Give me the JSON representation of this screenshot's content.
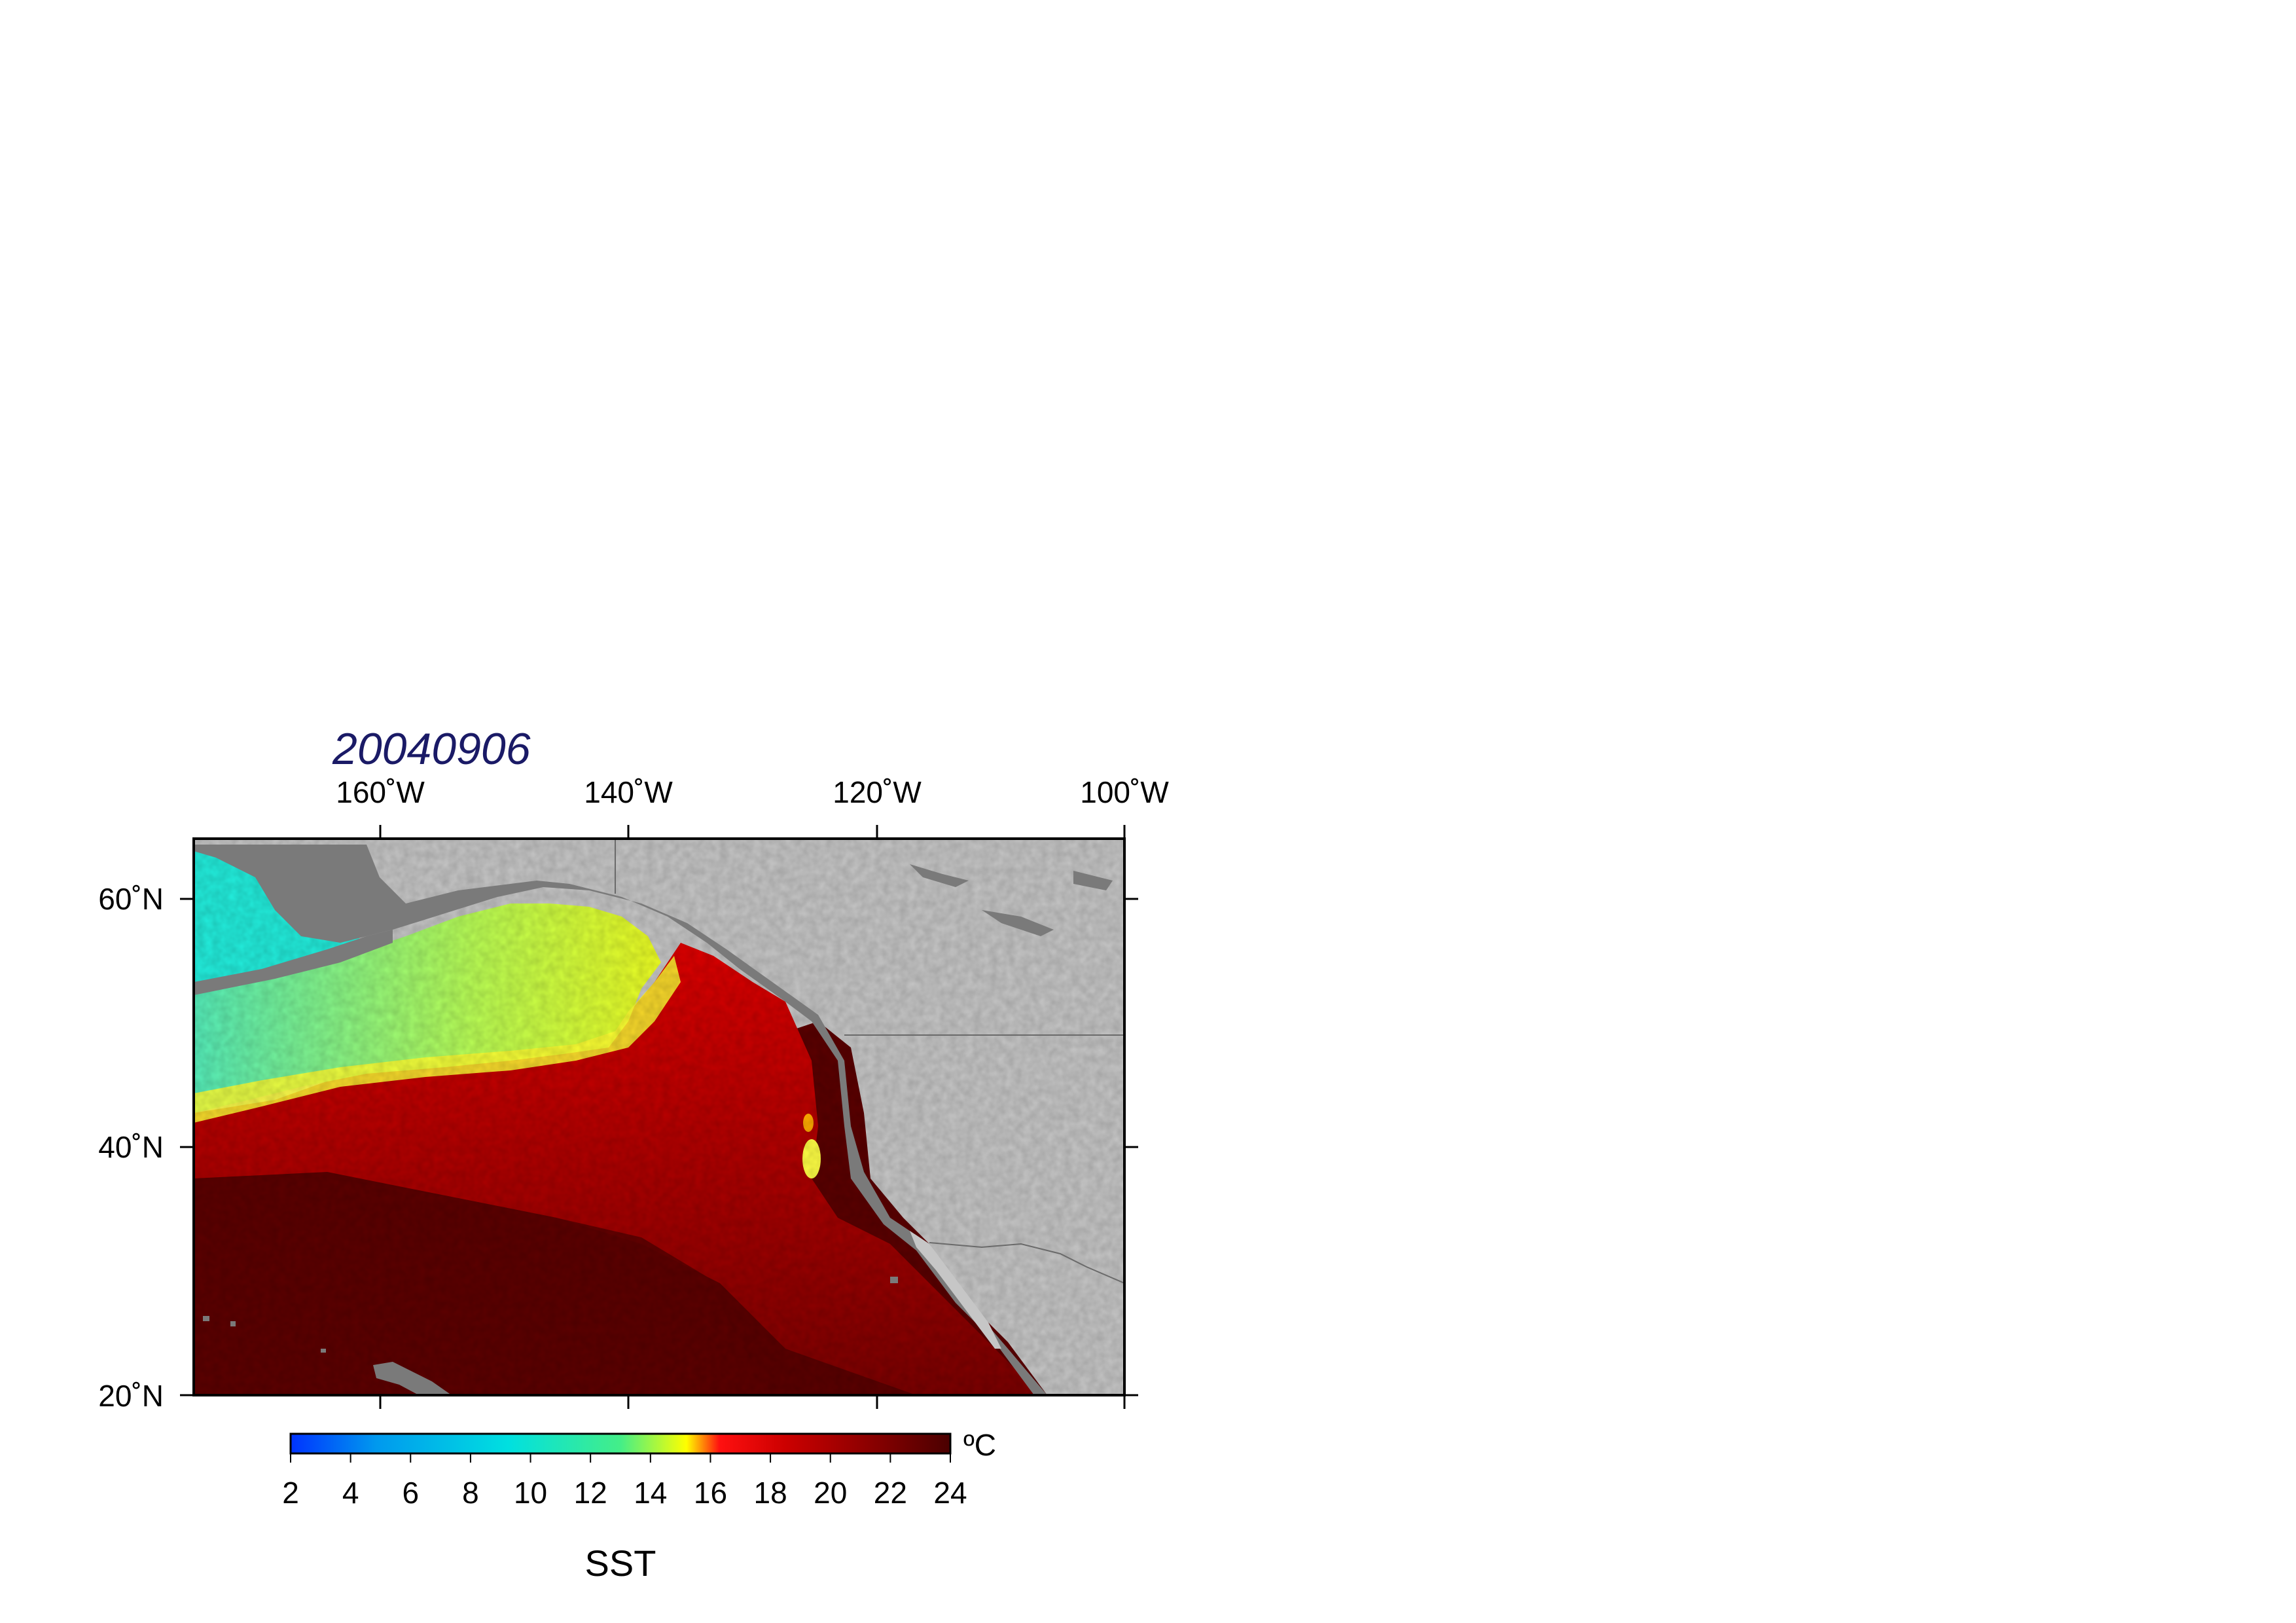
{
  "title": "20040906",
  "map": {
    "lon_labels": [
      "160˚W",
      "140˚W",
      "120˚W",
      "100˚W"
    ],
    "lat_labels": [
      "60˚N",
      "40˚N",
      "20˚N"
    ],
    "colors": {
      "land": "#c6c6c6",
      "shelf": "#7a7a7a",
      "frame": "#000000",
      "border": "#6a6a6a"
    }
  },
  "colorbar": {
    "title": "SST",
    "unit": "ºC",
    "ticks": [
      "2",
      "4",
      "6",
      "8",
      "10",
      "12",
      "14",
      "16",
      "18",
      "20",
      "22",
      "24"
    ],
    "range": [
      2,
      24
    ],
    "colors": [
      "#0033ff",
      "#0099ee",
      "#00e0e0",
      "#44ee88",
      "#ffff00",
      "#ff1010",
      "#cc0000",
      "#8a0000",
      "#4a0000"
    ]
  }
}
